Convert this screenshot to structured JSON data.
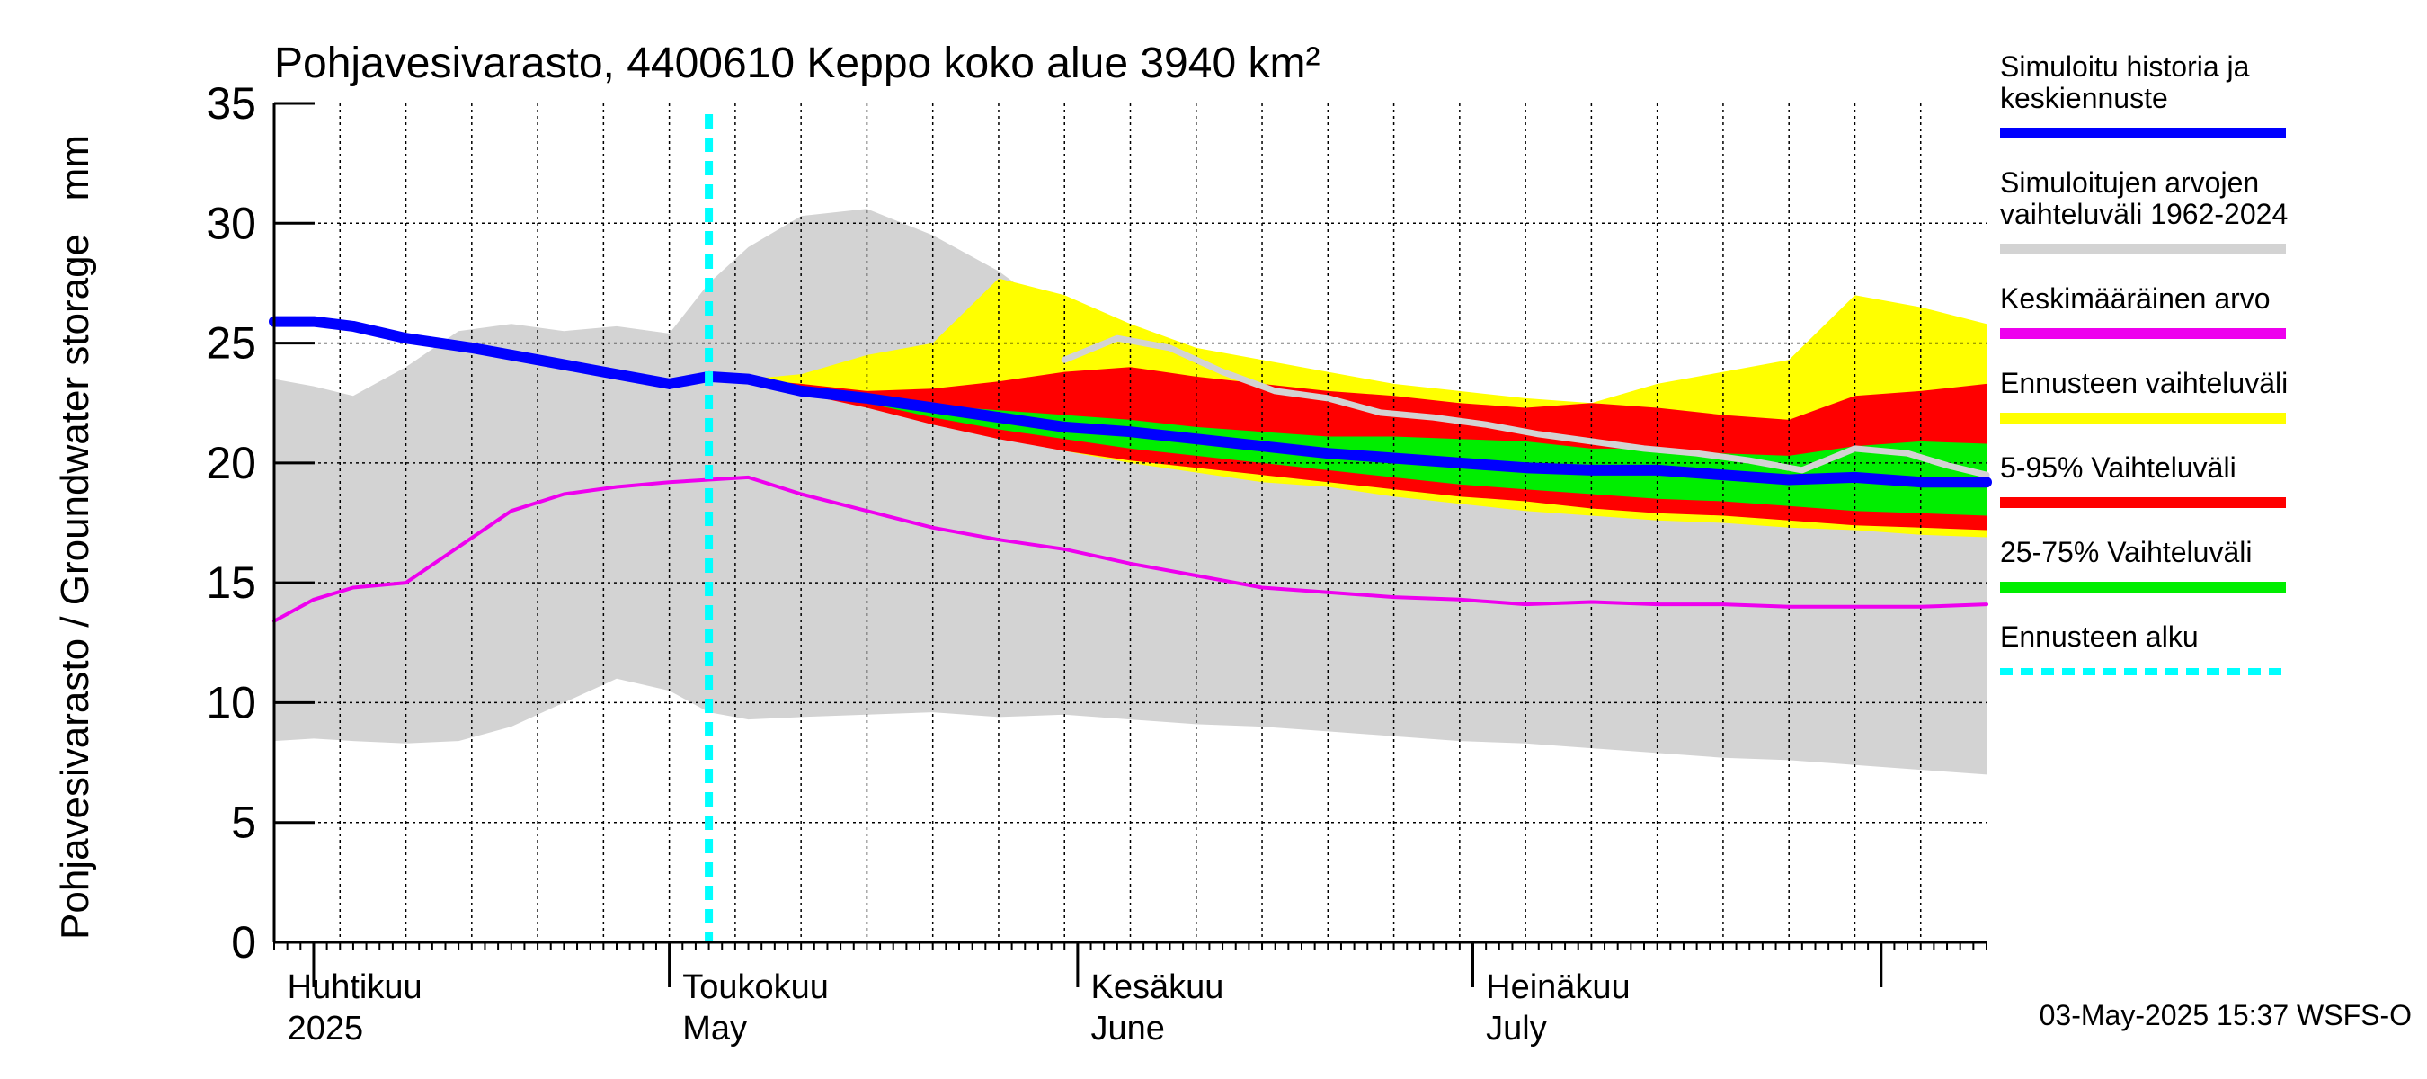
{
  "chart_data": {
    "type": "area",
    "title": "Pohjavesivarasto, 4400610 Keppo koko alue 3940 km²",
    "ylabel": "Pohjavesivarasto / Groundwater storage",
    "yunit": "mm",
    "ylim": [
      0,
      35
    ],
    "yticks": [
      0,
      5,
      10,
      15,
      20,
      25,
      30,
      35
    ],
    "x_range_days": [
      0,
      130
    ],
    "x_start_date": "2025-03-29",
    "month_labels": [
      {
        "day": 1,
        "fi": "Huhtikuu",
        "en": "2025"
      },
      {
        "day": 31,
        "fi": "Toukokuu",
        "en": "May"
      },
      {
        "day": 62,
        "fi": "Kesäkuu",
        "en": "June"
      },
      {
        "day": 92,
        "fi": "Heinäkuu",
        "en": "July"
      }
    ],
    "month_boundaries": [
      3,
      30,
      61,
      91,
      122
    ],
    "forecast_start_day": 33,
    "series": [
      {
        "name": "Simuloitujen arvojen vaihteluväli 1962-2024",
        "color": "#d3d3d3",
        "kind": "band",
        "x": [
          0,
          3,
          6,
          10,
          14,
          18,
          22,
          26,
          30,
          33,
          36,
          40,
          45,
          50,
          55,
          60,
          65,
          70,
          75,
          80,
          85,
          90,
          95,
          100,
          105,
          110,
          115,
          120,
          125,
          130
        ],
        "upper": [
          23.5,
          23.2,
          22.8,
          24.0,
          25.5,
          25.8,
          25.5,
          25.7,
          25.4,
          27.5,
          29.0,
          30.3,
          30.6,
          29.5,
          28.0,
          26.0,
          24.5,
          23.7,
          23.0,
          22.3,
          21.6,
          21.0,
          20.5,
          20.0,
          19.5,
          19.0,
          18.7,
          18.3,
          18.0,
          17.6
        ],
        "lower": [
          8.4,
          8.5,
          8.4,
          8.3,
          8.4,
          9.0,
          10.0,
          11.0,
          10.5,
          9.6,
          9.3,
          9.4,
          9.5,
          9.6,
          9.4,
          9.5,
          9.3,
          9.1,
          9.0,
          8.8,
          8.6,
          8.4,
          8.3,
          8.1,
          7.9,
          7.7,
          7.6,
          7.4,
          7.2,
          7.0
        ]
      },
      {
        "name": "Ennusteen vaihteluväli",
        "color": "#ffff00",
        "kind": "band",
        "x": [
          36,
          40,
          45,
          50,
          55,
          60,
          65,
          70,
          75,
          80,
          85,
          90,
          95,
          100,
          105,
          110,
          115,
          120,
          125,
          130
        ],
        "upper": [
          23.5,
          23.7,
          24.5,
          25.0,
          27.7,
          27.0,
          25.8,
          24.8,
          24.3,
          23.8,
          23.3,
          23.0,
          22.7,
          22.5,
          23.3,
          23.8,
          24.3,
          27.0,
          26.5,
          25.8
        ],
        "lower": [
          23.4,
          23.0,
          22.4,
          21.8,
          21.2,
          20.5,
          20.0,
          19.6,
          19.2,
          19.0,
          18.6,
          18.3,
          18.0,
          17.8,
          17.6,
          17.5,
          17.3,
          17.2,
          17.0,
          16.9
        ]
      },
      {
        "name": "5-95% Vaihteluväli",
        "color": "#ff0000",
        "kind": "band",
        "x": [
          36,
          40,
          45,
          50,
          55,
          60,
          65,
          70,
          75,
          80,
          85,
          90,
          95,
          100,
          105,
          110,
          115,
          120,
          125,
          130
        ],
        "upper": [
          23.5,
          23.3,
          23.0,
          23.1,
          23.4,
          23.8,
          24.0,
          23.6,
          23.3,
          23.0,
          22.8,
          22.5,
          22.3,
          22.5,
          22.3,
          22.0,
          21.8,
          22.8,
          23.0,
          23.3
        ],
        "lower": [
          23.4,
          22.9,
          22.3,
          21.6,
          21.0,
          20.5,
          20.1,
          19.8,
          19.5,
          19.2,
          18.9,
          18.6,
          18.4,
          18.1,
          17.9,
          17.8,
          17.6,
          17.4,
          17.3,
          17.2
        ]
      },
      {
        "name": "25-75% Vaihteluväli",
        "color": "#00ee00",
        "kind": "band",
        "x": [
          36,
          40,
          45,
          50,
          55,
          60,
          65,
          70,
          75,
          80,
          85,
          90,
          95,
          100,
          105,
          110,
          115,
          120,
          125,
          130
        ],
        "upper": [
          23.5,
          23.2,
          22.7,
          22.4,
          22.2,
          22.0,
          21.8,
          21.5,
          21.3,
          21.1,
          21.1,
          21.0,
          20.9,
          20.6,
          20.6,
          20.4,
          20.3,
          20.7,
          20.9,
          20.8
        ],
        "lower": [
          23.4,
          23.0,
          22.5,
          21.9,
          21.4,
          21.0,
          20.6,
          20.3,
          20.0,
          19.7,
          19.4,
          19.1,
          18.9,
          18.7,
          18.5,
          18.4,
          18.2,
          18.0,
          17.9,
          17.8
        ]
      },
      {
        "name": "Keskimääräinen arvo",
        "color": "#ee00ee",
        "kind": "line",
        "width": 4,
        "x": [
          0,
          3,
          6,
          10,
          14,
          18,
          22,
          26,
          30,
          33,
          36,
          40,
          45,
          50,
          55,
          60,
          65,
          70,
          75,
          80,
          85,
          90,
          95,
          100,
          105,
          110,
          115,
          120,
          125,
          130
        ],
        "y": [
          13.4,
          14.3,
          14.8,
          15.0,
          16.5,
          18.0,
          18.7,
          19.0,
          19.2,
          19.3,
          19.4,
          18.7,
          18.0,
          17.3,
          16.8,
          16.4,
          15.8,
          15.3,
          14.8,
          14.6,
          14.4,
          14.3,
          14.1,
          14.2,
          14.1,
          14.1,
          14.0,
          14.0,
          14.0,
          14.1
        ]
      },
      {
        "name": "Simuloitu historia (mediaani)",
        "color": "#d3d3d3",
        "kind": "line",
        "width": 7,
        "x": [
          60,
          64,
          68,
          72,
          76,
          80,
          84,
          88,
          92,
          96,
          100,
          104,
          108,
          112,
          116,
          120,
          124,
          127,
          130
        ],
        "y": [
          24.3,
          25.2,
          24.8,
          23.8,
          23.0,
          22.7,
          22.1,
          21.9,
          21.6,
          21.2,
          20.9,
          20.6,
          20.4,
          20.1,
          19.7,
          20.6,
          20.4,
          19.9,
          19.5
        ]
      },
      {
        "name": "Simuloitu historia ja keskiennuste",
        "color": "#0000ff",
        "kind": "line",
        "width": 12,
        "x": [
          0,
          3,
          6,
          10,
          15,
          20,
          25,
          30,
          33,
          36,
          40,
          45,
          50,
          55,
          60,
          65,
          70,
          75,
          80,
          85,
          90,
          95,
          100,
          105,
          110,
          115,
          120,
          125,
          130
        ],
        "y": [
          25.9,
          25.9,
          25.7,
          25.2,
          24.8,
          24.3,
          23.8,
          23.3,
          23.6,
          23.5,
          23.0,
          22.7,
          22.3,
          21.9,
          21.5,
          21.3,
          21.0,
          20.7,
          20.4,
          20.2,
          20.0,
          19.8,
          19.7,
          19.7,
          19.5,
          19.3,
          19.4,
          19.2,
          19.2
        ]
      }
    ]
  },
  "legend": [
    {
      "label": "Simuloitu historia ja keskiennuste",
      "color": "#0000ff",
      "kind": "line"
    },
    {
      "label": "Simuloitujen arvojen vaihteluväli 1962-2024",
      "color": "#d3d3d3",
      "kind": "line"
    },
    {
      "label": "Keskimääräinen arvo",
      "color": "#ee00ee",
      "kind": "line"
    },
    {
      "label": "Ennusteen vaihteluväli",
      "color": "#ffff00",
      "kind": "line"
    },
    {
      "label": "5-95% Vaihteluväli",
      "color": "#ff0000",
      "kind": "line"
    },
    {
      "label": "25-75% Vaihteluväli",
      "color": "#00ee00",
      "kind": "line"
    },
    {
      "label": "Ennusteen alku",
      "color": "#00ffff",
      "kind": "dashed"
    }
  ],
  "footer": "03-May-2025 15:37 WSFS-O"
}
